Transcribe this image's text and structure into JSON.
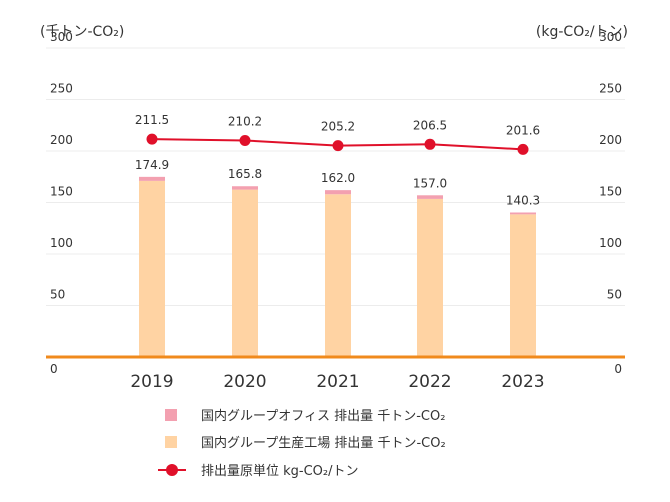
{
  "chart_data": {
    "type": "bar",
    "left_axis_unit": "(千トン-CO₂)",
    "right_axis_unit": "(kg-CO₂/トン)",
    "categories": [
      "2019",
      "2020",
      "2021",
      "2022",
      "2023"
    ],
    "y_ticks": [
      "300",
      "250",
      "200",
      "150",
      "100",
      "50",
      "0"
    ],
    "ylim": [
      0,
      300
    ],
    "bar_totals": [
      "174.9",
      "165.8",
      "162.0",
      "157.0",
      "140.3"
    ],
    "series": [
      {
        "name": "国内グループ生産工場 排出量 千トン-CO₂",
        "type": "bar",
        "color": "#ffd3a3",
        "values": [
          171.0,
          162.5,
          158.0,
          153.5,
          138.5
        ]
      },
      {
        "name": "国内グループオフィス 排出量 千トン-CO₂",
        "type": "bar",
        "color": "#f3a0b0",
        "values": [
          3.9,
          3.3,
          4.0,
          3.5,
          1.8
        ]
      },
      {
        "name": "排出量原単位 kg-CO₂/トン",
        "type": "line",
        "axis": "right",
        "color": "#e0102a",
        "values": [
          211.5,
          210.2,
          205.2,
          206.5,
          201.6
        ],
        "labels": [
          "211.5",
          "210.2",
          "205.2",
          "206.5",
          "201.6"
        ]
      }
    ],
    "grid": true,
    "legend_position": "bottom"
  }
}
